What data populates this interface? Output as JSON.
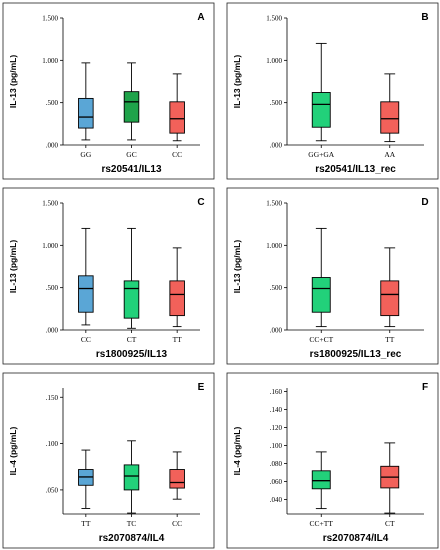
{
  "chart_data": [
    {
      "type": "boxplot",
      "panel_letter": "A",
      "xlabel": "rs20541/IL13",
      "ylabel": "IL-13 (pg/mL)",
      "ylim": [
        0,
        1.5
      ],
      "yticks": [
        0,
        0.5,
        1.0,
        1.5
      ],
      "ytick_labels": [
        ".000",
        ".500",
        "1.000",
        "1.500"
      ],
      "grid": false,
      "categories": [
        "GG",
        "GC",
        "CC"
      ],
      "colors": [
        "#5aa6d6",
        "#1fa34a",
        "#f2615a"
      ],
      "boxes": [
        {
          "min": 0.06,
          "q1": 0.2,
          "median": 0.33,
          "q3": 0.55,
          "max": 0.97
        },
        {
          "min": 0.06,
          "q1": 0.27,
          "median": 0.51,
          "q3": 0.63,
          "max": 0.97
        },
        {
          "min": 0.05,
          "q1": 0.14,
          "median": 0.31,
          "q3": 0.51,
          "max": 0.84
        }
      ]
    },
    {
      "type": "boxplot",
      "panel_letter": "B",
      "xlabel": "rs20541/IL13_rec",
      "ylabel": "IL-13 (pg/mL)",
      "ylim": [
        0,
        1.5
      ],
      "yticks": [
        0,
        0.5,
        1.0,
        1.5
      ],
      "ytick_labels": [
        ".000",
        ".500",
        "1.000",
        "1.500"
      ],
      "grid": false,
      "categories": [
        "GG+GA",
        "AA"
      ],
      "colors": [
        "#22d17a",
        "#f2615a"
      ],
      "boxes": [
        {
          "min": 0.05,
          "q1": 0.21,
          "median": 0.48,
          "q3": 0.62,
          "max": 1.2
        },
        {
          "min": 0.04,
          "q1": 0.14,
          "median": 0.31,
          "q3": 0.51,
          "max": 0.84
        }
      ]
    },
    {
      "type": "boxplot",
      "panel_letter": "C",
      "xlabel": "rs1800925/IL13",
      "ylabel": "IL-13 (pg/mL)",
      "ylim": [
        0,
        1.5
      ],
      "yticks": [
        0,
        0.5,
        1.0,
        1.5
      ],
      "ytick_labels": [
        ".000",
        ".500",
        "1.000",
        "1.500"
      ],
      "grid": false,
      "categories": [
        "CC",
        "CT",
        "TT"
      ],
      "colors": [
        "#5aa6d6",
        "#22d17a",
        "#f2615a"
      ],
      "boxes": [
        {
          "min": 0.06,
          "q1": 0.21,
          "median": 0.49,
          "q3": 0.64,
          "max": 1.2
        },
        {
          "min": 0.02,
          "q1": 0.14,
          "median": 0.49,
          "q3": 0.58,
          "max": 1.2
        },
        {
          "min": 0.04,
          "q1": 0.17,
          "median": 0.42,
          "q3": 0.58,
          "max": 0.97
        }
      ]
    },
    {
      "type": "boxplot",
      "panel_letter": "D",
      "xlabel": "rs1800925/IL13_rec",
      "ylabel": "IL-13 (pg/mL)",
      "ylim": [
        0,
        1.5
      ],
      "yticks": [
        0,
        0.5,
        1.0,
        1.5
      ],
      "ytick_labels": [
        ".000",
        ".500",
        "1.000",
        "1.500"
      ],
      "grid": false,
      "categories": [
        "CC+CT",
        "TT"
      ],
      "colors": [
        "#22d17a",
        "#f2615a"
      ],
      "boxes": [
        {
          "min": 0.04,
          "q1": 0.21,
          "median": 0.49,
          "q3": 0.62,
          "max": 1.2
        },
        {
          "min": 0.04,
          "q1": 0.17,
          "median": 0.42,
          "q3": 0.58,
          "max": 0.97
        }
      ]
    },
    {
      "type": "boxplot",
      "panel_letter": "E",
      "xlabel": "rs2070874/IL4",
      "ylabel": "IL-4 (pg/mL)",
      "ylim": [
        0.024,
        0.16
      ],
      "yticks": [
        0.05,
        0.1,
        0.15
      ],
      "ytick_labels": [
        ".050",
        ".100",
        ".150"
      ],
      "grid": false,
      "categories": [
        "TT",
        "TC",
        "CC"
      ],
      "colors": [
        "#5aa6d6",
        "#22d17a",
        "#f2615a"
      ],
      "boxes": [
        {
          "min": 0.03,
          "q1": 0.055,
          "median": 0.064,
          "q3": 0.072,
          "max": 0.093
        },
        {
          "min": 0.025,
          "q1": 0.05,
          "median": 0.065,
          "q3": 0.077,
          "max": 0.103
        },
        {
          "min": 0.04,
          "q1": 0.052,
          "median": 0.058,
          "q3": 0.072,
          "max": 0.091
        }
      ]
    },
    {
      "type": "boxplot",
      "panel_letter": "F",
      "xlabel": "rs2070874/IL4",
      "ylabel": "IL-4 (pg/mL)",
      "ylim": [
        0.024,
        0.164
      ],
      "yticks": [
        0.04,
        0.06,
        0.08,
        0.1,
        0.12,
        0.14,
        0.16
      ],
      "ytick_labels": [
        ".040",
        ".060",
        ".080",
        ".100",
        ".120",
        ".140",
        ".160"
      ],
      "grid": false,
      "categories": [
        "CC+TT",
        "CT"
      ],
      "colors": [
        "#22d17a",
        "#f2615a"
      ],
      "boxes": [
        {
          "min": 0.03,
          "q1": 0.052,
          "median": 0.061,
          "q3": 0.072,
          "max": 0.093
        },
        {
          "min": 0.025,
          "q1": 0.053,
          "median": 0.065,
          "q3": 0.077,
          "max": 0.103
        }
      ]
    }
  ]
}
